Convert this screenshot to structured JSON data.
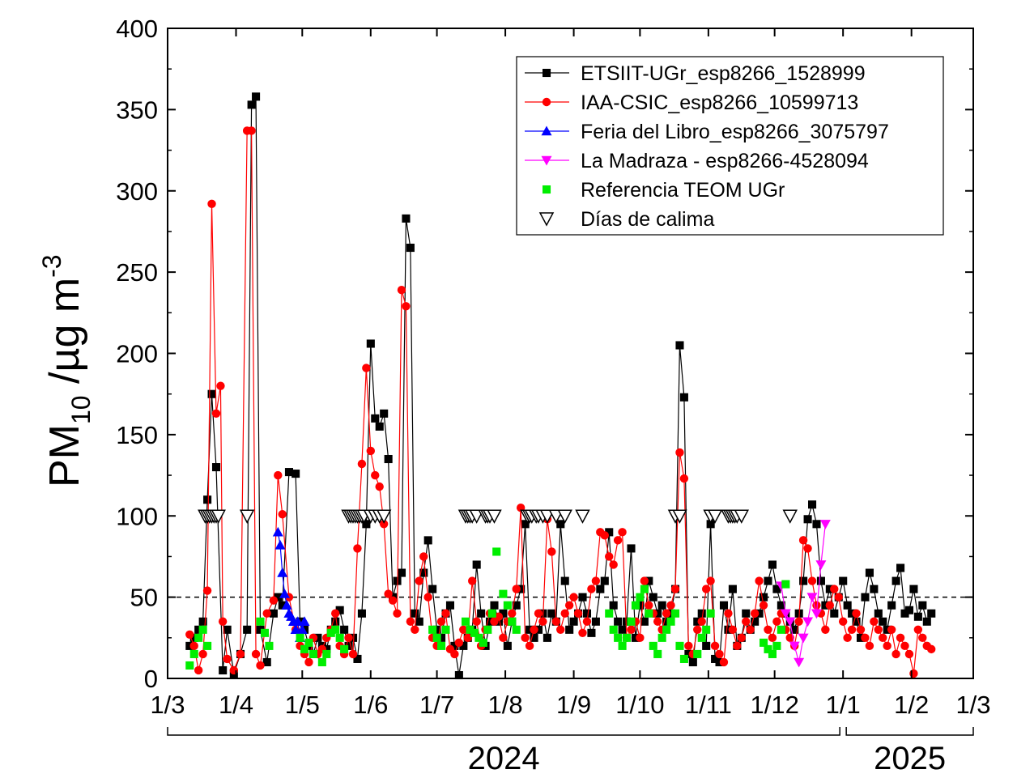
{
  "chart_data": {
    "type": "line",
    "ylabel": {
      "main": "PM",
      "sub": "10",
      "unit_pre": " /µg m",
      "unit_sup": "-3"
    },
    "ylim": [
      0,
      400
    ],
    "y_ticks": [
      "0",
      "50",
      "100",
      "150",
      "200",
      "250",
      "300",
      "350",
      "400"
    ],
    "x_ticks": [
      "1/3",
      "1/4",
      "1/5",
      "1/6",
      "1/7",
      "1/8",
      "1/9",
      "1/10",
      "1/11",
      "1/12",
      "1/1",
      "1/2",
      "1/3"
    ],
    "year_brackets": [
      "2024",
      "2025"
    ],
    "reference_line": {
      "y": 50,
      "style": "dashed"
    },
    "legend_position": "top-right",
    "colors": {
      "black": "#000000",
      "red": "#ff0000",
      "blue": "#0000ff",
      "magenta": "#ff00ff",
      "green": "#00ee00"
    },
    "series": [
      {
        "name": "ETSIIT-UGr_esp8266_1528999",
        "color": "#000000",
        "marker": "square",
        "x": [
          10,
          12,
          14,
          16,
          18,
          20,
          22,
          25,
          27,
          30,
          33,
          36,
          38,
          40,
          42,
          45,
          48,
          50,
          52,
          55,
          58,
          60,
          62,
          64,
          66,
          68,
          70,
          72,
          74,
          76,
          78,
          80,
          82,
          84,
          86,
          88,
          90,
          92,
          94,
          96,
          98,
          100,
          102,
          104,
          106,
          108,
          110,
          112,
          114,
          116,
          118,
          120,
          122,
          124,
          126,
          128,
          130,
          132,
          134,
          136,
          138,
          140,
          142,
          144,
          146,
          148,
          150,
          152,
          154,
          156,
          158,
          160,
          162,
          164,
          166,
          168,
          170,
          172,
          174,
          176,
          178,
          180,
          182,
          184,
          186,
          188,
          190,
          192,
          194,
          196,
          198,
          200,
          202,
          204,
          206,
          208,
          210,
          212,
          214,
          216,
          218,
          220,
          222,
          224,
          226,
          228,
          230,
          232,
          234,
          236,
          238,
          240,
          242,
          244,
          246,
          248,
          250,
          252,
          254,
          256,
          258,
          260,
          262,
          264,
          266,
          268,
          270,
          272,
          274,
          276,
          278,
          280,
          282,
          284,
          286,
          288,
          290,
          292,
          294,
          296,
          298,
          300,
          302,
          304,
          306,
          308,
          310,
          312,
          314,
          316,
          318,
          320,
          322,
          324,
          326,
          328,
          330,
          332,
          334,
          336,
          338,
          340,
          342,
          344,
          346
        ],
        "y": [
          20,
          25,
          30,
          35,
          110,
          175,
          130,
          5,
          30,
          3,
          15,
          30,
          353,
          358,
          30,
          10,
          40,
          50,
          45,
          127,
          126,
          35,
          30,
          20,
          15,
          25,
          20,
          18,
          30,
          35,
          42,
          30,
          20,
          25,
          12,
          40,
          95,
          206,
          160,
          155,
          163,
          135,
          50,
          60,
          65,
          283,
          265,
          40,
          35,
          65,
          85,
          55,
          30,
          25,
          40,
          45,
          20,
          2,
          20,
          25,
          30,
          70,
          40,
          20,
          35,
          45,
          35,
          40,
          20,
          35,
          45,
          55,
          95,
          30,
          25,
          30,
          40,
          25,
          40,
          35,
          95,
          60,
          30,
          35,
          40,
          50,
          40,
          28,
          35,
          55,
          60,
          90,
          45,
          35,
          30,
          35,
          80,
          25,
          45,
          35,
          60,
          50,
          40,
          45,
          35,
          40,
          55,
          205,
          173,
          15,
          10,
          35,
          40,
          20,
          95,
          12,
          10,
          45,
          30,
          55,
          20,
          25,
          40,
          30,
          35,
          40,
          50,
          60,
          70,
          55,
          45,
          40,
          35,
          30,
          40,
          60,
          98,
          107,
          95,
          60,
          45,
          55,
          40,
          50,
          60,
          45,
          40,
          35,
          25,
          50,
          65,
          55,
          40,
          35,
          30,
          45,
          60,
          68,
          40,
          42,
          55,
          38,
          45,
          35,
          40
        ]
      },
      {
        "name": "IAA-CSIC_esp8266_10599713",
        "color": "#ff0000",
        "marker": "circle",
        "x": [
          10,
          12,
          14,
          16,
          18,
          20,
          22,
          24,
          25,
          27,
          30,
          33,
          36,
          38,
          40,
          42,
          45,
          48,
          50,
          52,
          55,
          58,
          60,
          62,
          64,
          66,
          68,
          70,
          72,
          74,
          76,
          78,
          80,
          82,
          84,
          86,
          88,
          90,
          92,
          94,
          96,
          98,
          100,
          102,
          104,
          106,
          108,
          110,
          112,
          114,
          116,
          118,
          120,
          122,
          124,
          126,
          128,
          130,
          132,
          134,
          136,
          138,
          140,
          142,
          144,
          146,
          148,
          150,
          152,
          154,
          156,
          158,
          160,
          162,
          164,
          166,
          168,
          170,
          172,
          174,
          176,
          178,
          180,
          182,
          184,
          186,
          188,
          190,
          192,
          194,
          196,
          198,
          200,
          202,
          204,
          206,
          208,
          210,
          212,
          214,
          216,
          218,
          220,
          222,
          224,
          226,
          228,
          230,
          232,
          234,
          236,
          238,
          240,
          242,
          244,
          246,
          248,
          250,
          252,
          254,
          256,
          258,
          260,
          262,
          264,
          266,
          268,
          270,
          272,
          274,
          276,
          278,
          280,
          282,
          284,
          286,
          288,
          290,
          292,
          294,
          296,
          298,
          300,
          302,
          304,
          306,
          308,
          310,
          312,
          314,
          316,
          318,
          320,
          322,
          324,
          326,
          328,
          330,
          332,
          334,
          336,
          338,
          340,
          342,
          344,
          346
        ],
        "y": [
          27,
          20,
          5,
          15,
          54,
          292,
          163,
          180,
          35,
          12,
          5,
          15,
          337,
          337,
          15,
          8,
          40,
          48,
          125,
          101,
          50,
          30,
          20,
          15,
          10,
          25,
          15,
          18,
          25,
          30,
          40,
          20,
          15,
          25,
          15,
          80,
          132,
          191,
          140,
          125,
          118,
          95,
          52,
          48,
          40,
          239,
          229,
          35,
          30,
          60,
          75,
          50,
          25,
          20,
          35,
          40,
          18,
          15,
          22,
          30,
          25,
          60,
          35,
          20,
          30,
          40,
          35,
          38,
          25,
          35,
          40,
          55,
          105,
          25,
          20,
          30,
          40,
          35,
          98,
          78,
          35,
          30,
          40,
          45,
          50,
          40,
          28,
          35,
          55,
          60,
          90,
          88,
          75,
          70,
          85,
          90,
          25,
          30,
          35,
          25,
          60,
          45,
          40,
          35,
          30,
          40,
          45,
          55,
          139,
          123,
          20,
          15,
          30,
          35,
          55,
          60,
          20,
          15,
          10,
          40,
          30,
          20,
          25,
          35,
          30,
          40,
          60,
          45,
          30,
          25,
          35,
          40,
          30,
          25,
          20,
          35,
          85,
          80,
          60,
          45,
          40,
          30,
          45,
          55,
          50,
          35,
          25,
          30,
          40,
          30,
          25,
          20,
          35,
          30,
          25,
          20,
          30,
          15,
          25,
          20,
          15,
          3,
          30,
          25,
          20,
          18
        ]
      },
      {
        "name": "Feria del Libro_esp8266_3075797",
        "color": "#0000ff",
        "marker": "triangle-up",
        "x": [
          50,
          51,
          52,
          53,
          54,
          55,
          56,
          57,
          58,
          59,
          60,
          61,
          62
        ],
        "y": [
          90,
          82,
          65,
          52,
          45,
          40,
          38,
          35,
          30,
          35,
          25,
          30,
          35
        ]
      },
      {
        "name": "La Madraza - esp8266-4528094",
        "color": "#ff00ff",
        "marker": "triangle-down",
        "x": [
          278,
          280,
          282,
          284,
          286,
          288,
          290,
          292,
          294,
          296,
          298
        ],
        "y": [
          57,
          40,
          35,
          20,
          10,
          25,
          35,
          50,
          40,
          70,
          95
        ]
      },
      {
        "name": "Referencia TEOM UGr",
        "color": "#00ee00",
        "marker": "square",
        "x": [
          10,
          12,
          14,
          16,
          18,
          42,
          44,
          46,
          60,
          62,
          64,
          66,
          70,
          72,
          74,
          76,
          78,
          80,
          120,
          122,
          124,
          126,
          135,
          137,
          139,
          141,
          143,
          145,
          147,
          149,
          152,
          154,
          156,
          158,
          200,
          202,
          204,
          206,
          208,
          210,
          212,
          214,
          216,
          218,
          220,
          222,
          224,
          226,
          228,
          230,
          232,
          234,
          240,
          242,
          244,
          246,
          270,
          272,
          274,
          276,
          278,
          280
        ],
        "y": [
          8,
          15,
          25,
          30,
          20,
          35,
          28,
          20,
          25,
          18,
          22,
          15,
          10,
          15,
          28,
          30,
          25,
          18,
          30,
          25,
          20,
          30,
          35,
          30,
          28,
          25,
          22,
          30,
          40,
          78,
          52,
          45,
          35,
          30,
          40,
          30,
          25,
          20,
          25,
          35,
          45,
          50,
          55,
          40,
          20,
          15,
          25,
          30,
          35,
          40,
          20,
          12,
          15,
          25,
          30,
          40,
          22,
          18,
          15,
          20,
          30,
          58
        ]
      },
      {
        "name": "Días de calima",
        "color": "#000000",
        "marker": "triangle-down-open",
        "x": [
          17,
          18,
          19,
          20,
          21,
          22,
          23,
          36,
          82,
          83,
          84,
          85,
          86,
          87,
          88,
          89,
          92,
          94,
          96,
          98,
          135,
          136,
          137,
          138,
          140,
          144,
          145,
          146,
          148,
          163,
          164,
          165,
          167,
          168,
          170,
          172,
          176,
          180,
          188,
          230,
          232,
          246,
          248,
          254,
          255,
          256,
          257,
          258,
          260,
          282
        ],
        "y": [
          100,
          100,
          100,
          100,
          100,
          100,
          100,
          100,
          100,
          100,
          100,
          100,
          100,
          100,
          100,
          100,
          100,
          100,
          100,
          100,
          100,
          100,
          100,
          100,
          100,
          100,
          100,
          100,
          100,
          100,
          100,
          100,
          100,
          100,
          100,
          100,
          100,
          100,
          100,
          100,
          100,
          100,
          100,
          100,
          100,
          100,
          100,
          100,
          100,
          100
        ]
      }
    ]
  }
}
